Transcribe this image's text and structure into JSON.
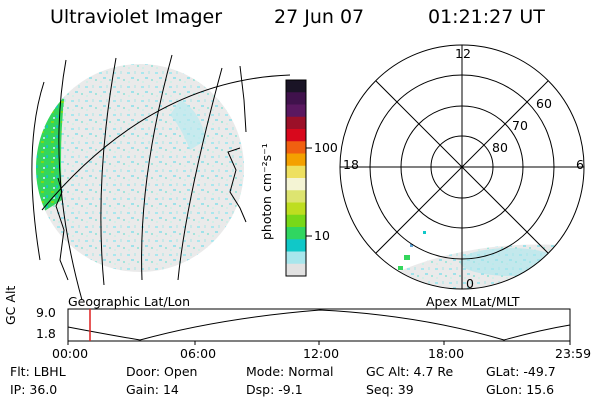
{
  "header": {
    "instrument": "Ultraviolet Imager",
    "date": "27 Jun 07",
    "time": "01:21:27 UT"
  },
  "colorbar": {
    "unit_label": "photon cm⁻²s⁻¹",
    "ticks": [
      "100",
      "10"
    ],
    "colors": [
      "#1a1426",
      "#40124c",
      "#5a1860",
      "#9b1028",
      "#d8081c",
      "#f06010",
      "#f4a000",
      "#eee060",
      "#f4f4d4",
      "#dde470",
      "#bede20",
      "#78d818",
      "#30d660",
      "#10c8c8",
      "#a8e6ec",
      "#e2e2e2"
    ]
  },
  "left_panel": {
    "label": "Geographic Lat/Lon"
  },
  "right_panel": {
    "label": "Apex  MLat/MLT",
    "mlt_labels": {
      "top": "12",
      "right": "6",
      "left": "18",
      "bottom": "0"
    },
    "lat_labels": [
      "60",
      "70",
      "80"
    ]
  },
  "altitude_plot": {
    "axis_title": "GC Alt",
    "y_ticks": [
      "9.0",
      "1.8"
    ],
    "x_ticks": [
      "00:00",
      "06:00",
      "12:00",
      "18:00",
      "23:59"
    ],
    "marker_color": "#dd2020"
  },
  "status": {
    "row1": [
      {
        "label": "Flt:",
        "value": "LBHL"
      },
      {
        "label": "Door:",
        "value": "Open"
      },
      {
        "label": "Mode:",
        "value": "Normal"
      },
      {
        "label": "GC Alt:",
        "value": "4.7 Re"
      },
      {
        "label": "GLat:",
        "value": "-49.7"
      }
    ],
    "row2": [
      {
        "label": "IP:",
        "value": "36.0"
      },
      {
        "label": "Gain:",
        "value": "14"
      },
      {
        "label": "Dsp:",
        "value": "-9.1"
      },
      {
        "label": "Seq:",
        "value": "39"
      },
      {
        "label": "GLon:",
        "value": "15.6"
      }
    ]
  }
}
